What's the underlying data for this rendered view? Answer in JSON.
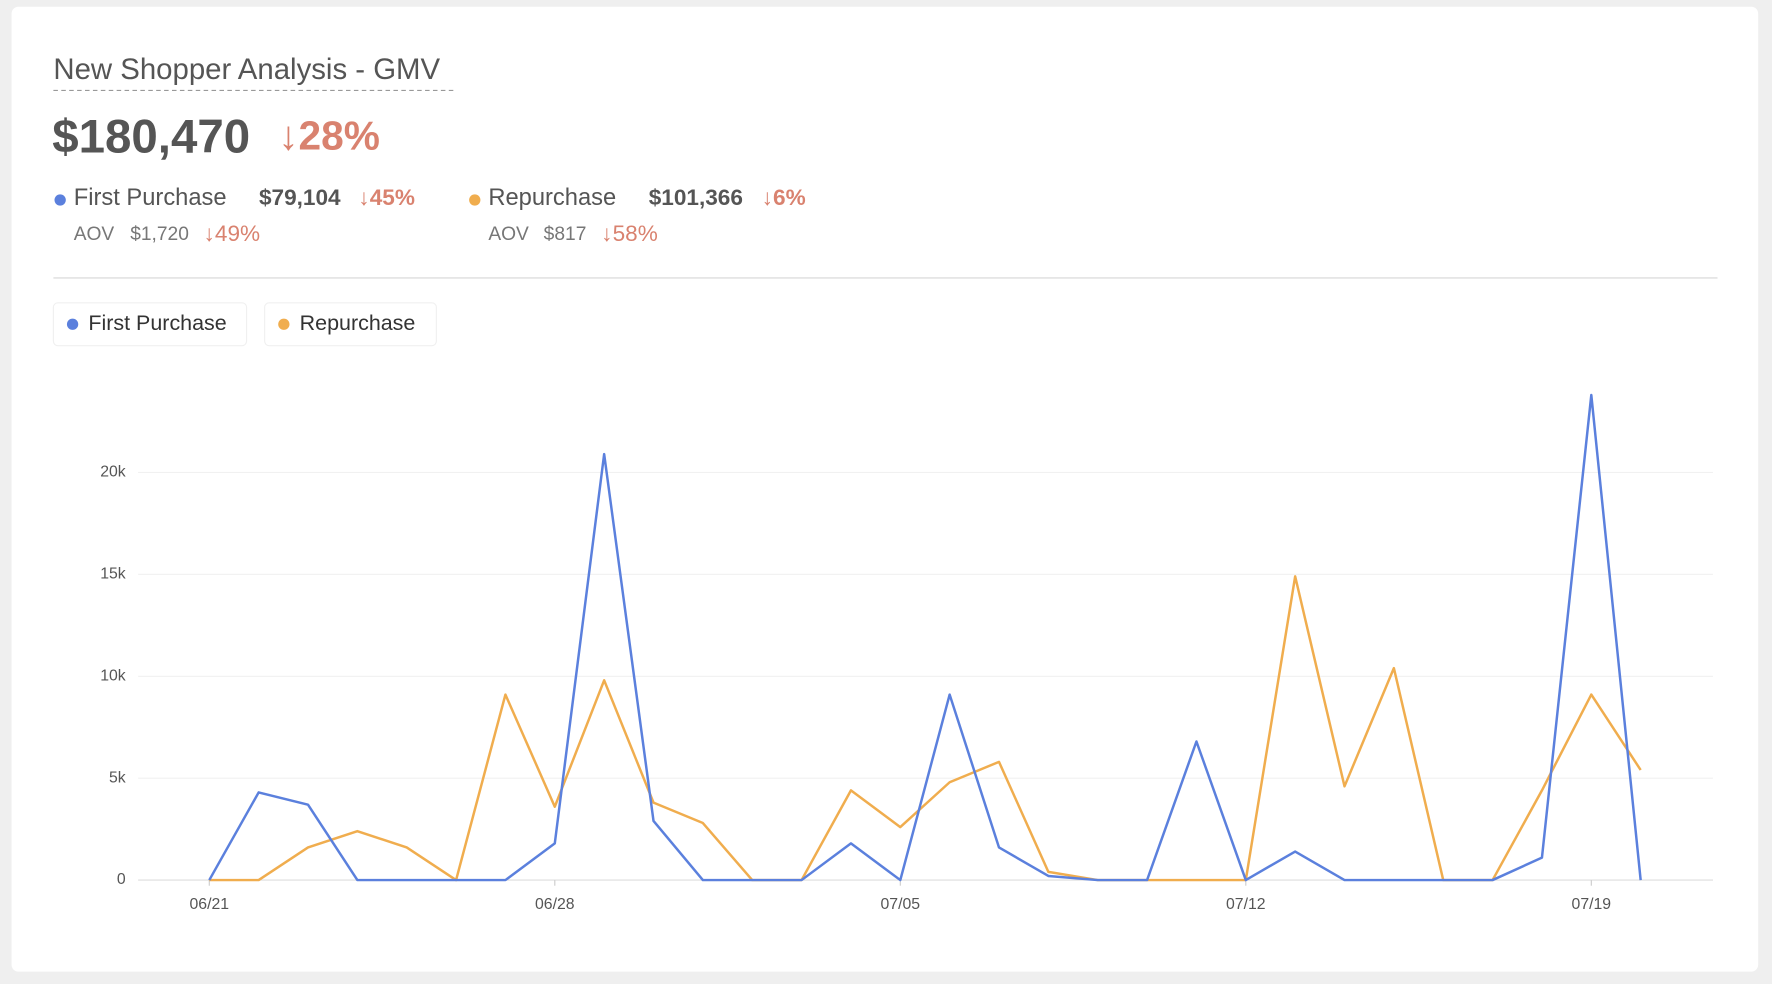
{
  "header": {
    "title": "New Shopper Analysis - GMV",
    "total": "$180,470",
    "total_change": "↓28%",
    "segments": [
      {
        "name": "First Purchase",
        "color": "#5b80dd",
        "value": "$79,104",
        "change": "↓45%",
        "aov_label": "AOV",
        "aov": "$1,720",
        "aov_change": "↓49%"
      },
      {
        "name": "Repurchase",
        "color": "#f0ad4e",
        "value": "$101,366",
        "change": "↓6%",
        "aov_label": "AOV",
        "aov": "$817",
        "aov_change": "↓58%"
      }
    ]
  },
  "chart_data": {
    "type": "line",
    "categories": [
      "06/21",
      null,
      null,
      null,
      null,
      null,
      null,
      "06/28",
      null,
      null,
      null,
      null,
      null,
      null,
      "07/05",
      null,
      null,
      null,
      null,
      null,
      null,
      "07/12",
      null,
      null,
      null,
      null,
      null,
      null,
      "07/19",
      null
    ],
    "series": [
      {
        "name": "First Purchase",
        "color": "#5b80dd",
        "values": [
          0,
          4300,
          3700,
          0,
          0,
          0,
          0,
          1800,
          20900,
          2900,
          0,
          0,
          0,
          1800,
          0,
          9100,
          1600,
          200,
          0,
          0,
          6800,
          0,
          1400,
          0,
          0,
          0,
          0,
          1100,
          23800,
          0
        ]
      },
      {
        "name": "Repurchase",
        "color": "#f0ad4e",
        "values": [
          0,
          0,
          1600,
          2400,
          1600,
          0,
          9100,
          3600,
          9800,
          3800,
          2800,
          0,
          0,
          4400,
          2600,
          4800,
          5800,
          400,
          0,
          0,
          0,
          0,
          14900,
          4600,
          10400,
          0,
          0,
          4400,
          9100,
          5400
        ]
      }
    ],
    "ylim": [
      0,
      25000
    ],
    "yticks": [
      0,
      {
        "value": 5000,
        "label": "5k"
      },
      {
        "value": 10000,
        "label": "10k"
      },
      {
        "value": 15000,
        "label": "15k"
      },
      {
        "value": 20000,
        "label": "20k"
      }
    ],
    "grid": true,
    "legend": "top-left"
  }
}
